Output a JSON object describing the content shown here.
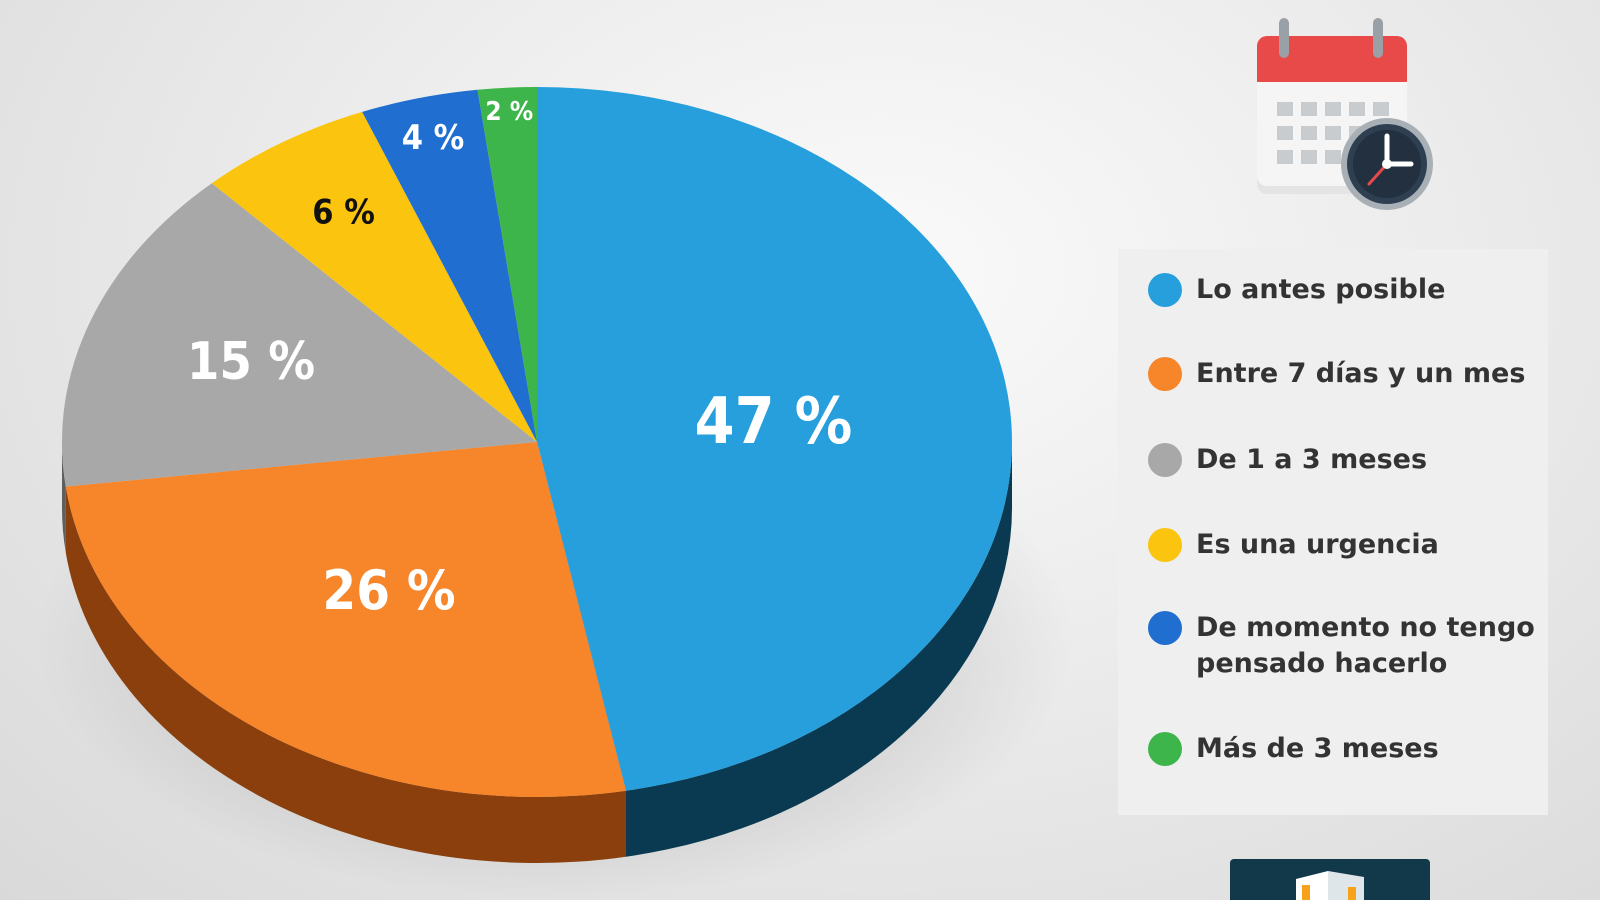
{
  "chart_data": {
    "type": "pie",
    "title": "",
    "slices": [
      {
        "label": "Lo antes posible",
        "value": 47,
        "display": "47 %",
        "color": "#269fdc",
        "side_color": "#0a3a52"
      },
      {
        "label": "Entre 7 días y un mes",
        "value": 26,
        "display": "26 %",
        "color": "#f7852a",
        "side_color": "#8a3f0c"
      },
      {
        "label": "De 1 a 3 meses",
        "value": 15,
        "display": "15 %",
        "color": "#a8a8a8",
        "side_color": "#5e5e5e"
      },
      {
        "label": "Es una urgencia",
        "value": 6,
        "display": "6 %",
        "color": "#fbc40e",
        "side_color": "#8c6a00"
      },
      {
        "label": "De momento no tengo pensado hacerlo",
        "value": 4,
        "display": "4 %",
        "color": "#1f6ed0",
        "side_color": "#0d3470"
      },
      {
        "label": "Más de 3 meses",
        "value": 2,
        "display": "2 %",
        "color": "#3db54a",
        "side_color": "#1c5c24"
      }
    ],
    "label_colors": [
      "#ffffff",
      "#ffffff",
      "#ffffff",
      "#111111",
      "#ffffff",
      "#ffffff"
    ],
    "legend_placement": "right",
    "style": "3d-tilted"
  },
  "legend": {
    "items": [
      {
        "text": "Lo antes posible",
        "color": "#269fdc"
      },
      {
        "text": "Entre 7 días y un mes",
        "color": "#f7852a"
      },
      {
        "text": "De 1 a 3 meses",
        "color": "#a8a8a8"
      },
      {
        "text": "Es una urgencia",
        "color": "#fbc40e"
      },
      {
        "text": "De momento no tengo pensado hacerlo",
        "color": "#1f6ed0"
      },
      {
        "text": "Más de 3 meses",
        "color": "#3db54a"
      }
    ]
  },
  "icons": {
    "calendar": "calendar-clock-icon",
    "logo": "building-logo-icon"
  }
}
